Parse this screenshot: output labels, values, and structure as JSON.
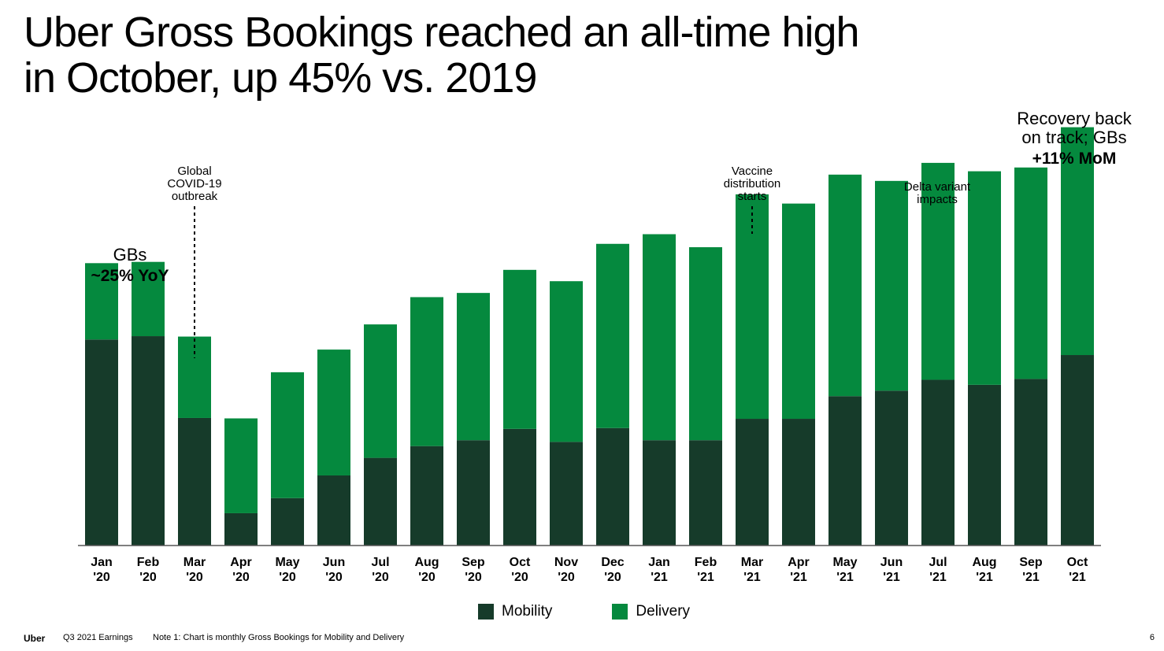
{
  "title_lines": [
    "Uber Gross Bookings reached an all-time high",
    "in October, up 45% vs. 2019"
  ],
  "chart_data": {
    "type": "bar",
    "stacked": true,
    "title": "Uber Gross Bookings reached an all-time high in October, up 45% vs. 2019",
    "xlabel": "",
    "ylabel": "",
    "ylim": [
      0,
      100
    ],
    "categories": [
      [
        "Jan",
        "'20"
      ],
      [
        "Feb",
        "'20"
      ],
      [
        "Mar",
        "'20"
      ],
      [
        "Apr",
        "'20"
      ],
      [
        "May",
        "'20"
      ],
      [
        "Jun",
        "'20"
      ],
      [
        "Jul",
        "'20"
      ],
      [
        "Aug",
        "'20"
      ],
      [
        "Sep",
        "'20"
      ],
      [
        "Oct",
        "'20"
      ],
      [
        "Nov",
        "'20"
      ],
      [
        "Dec",
        "'20"
      ],
      [
        "Jan",
        "'21"
      ],
      [
        "Feb",
        "'21"
      ],
      [
        "Mar",
        "'21"
      ],
      [
        "Apr",
        "'21"
      ],
      [
        "May",
        "'21"
      ],
      [
        "Jun",
        "'21"
      ],
      [
        "Jul",
        "'21"
      ],
      [
        "Aug",
        "'21"
      ],
      [
        "Sep",
        "'21"
      ],
      [
        "Oct",
        "'21"
      ]
    ],
    "series": [
      {
        "name": "Mobility",
        "color": "#163b2a",
        "values": [
          49.1,
          49.9,
          30.4,
          7.7,
          11.3,
          16.7,
          20.9,
          23.7,
          25.1,
          27.8,
          24.7,
          28.0,
          25.1,
          25.1,
          30.2,
          30.2,
          35.6,
          36.9,
          39.5,
          38.3,
          39.7,
          45.4
        ]
      },
      {
        "name": "Delivery",
        "color": "#05893e",
        "values": [
          18.2,
          17.7,
          19.4,
          22.6,
          30.0,
          30.0,
          31.8,
          35.5,
          35.1,
          37.9,
          38.3,
          43.9,
          49.1,
          46.0,
          53.5,
          51.3,
          52.8,
          50.0,
          51.7,
          50.9,
          50.4,
          54.3
        ]
      }
    ],
    "annotations": [
      {
        "at": "Mar '20",
        "lines": [
          "Global",
          "COVID-19",
          "outbreak"
        ]
      },
      {
        "at": "Jan '20",
        "lines": [
          "GBs"
        ],
        "bold": "~25% YoY"
      },
      {
        "at": "Mar '21",
        "lines": [
          "Vaccine",
          "distribution",
          "starts"
        ]
      },
      {
        "at": "Jul '21",
        "lines": [
          "Delta variant",
          "impacts"
        ]
      },
      {
        "at": "Oct '21",
        "lines": [
          "Recovery back",
          "on track; GBs"
        ],
        "bold": "+11% MoM"
      }
    ]
  },
  "legend": [
    {
      "label": "Mobility",
      "color": "#163b2a"
    },
    {
      "label": "Delivery",
      "color": "#05893e"
    }
  ],
  "footer": {
    "brand": "Uber",
    "event": "Q3 2021 Earnings",
    "note": "Note 1: Chart is monthly Gross Bookings for Mobility and Delivery",
    "page": "6"
  }
}
